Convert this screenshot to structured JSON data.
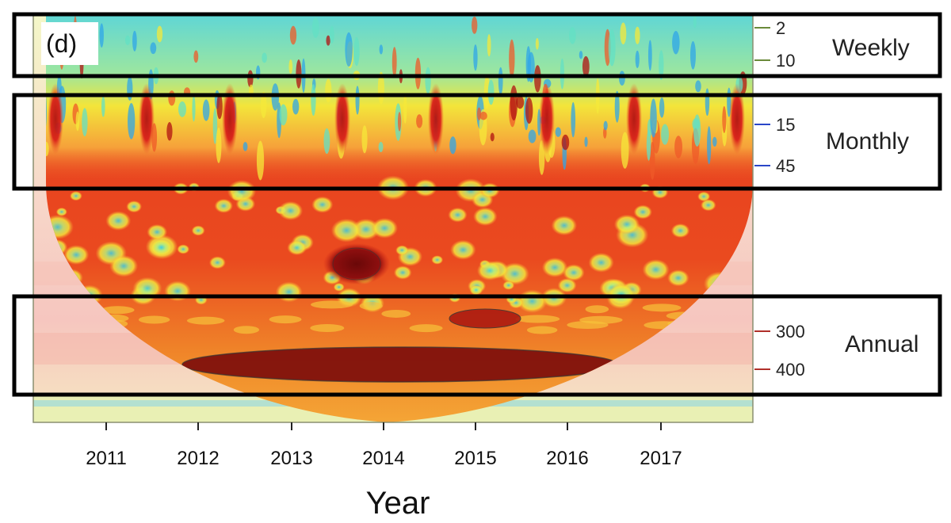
{
  "chart_data": {
    "type": "heatmap",
    "panel_label": "(d)",
    "xlabel": "Year",
    "x_ticks": [
      "2011",
      "2012",
      "2013",
      "2014",
      "2015",
      "2016",
      "2017"
    ],
    "period_ticks": [
      {
        "label": "2",
        "color": "#6a8a3a"
      },
      {
        "label": "10",
        "color": "#6a8a3a"
      },
      {
        "label": "15",
        "color": "#2a46c8"
      },
      {
        "label": "45",
        "color": "#2a46c8"
      },
      {
        "label": "300",
        "color": "#b0302a"
      },
      {
        "label": "400",
        "color": "#b0302a"
      }
    ],
    "bands": [
      {
        "label": "Weekly"
      },
      {
        "label": "Monthly"
      },
      {
        "label": "Annual"
      }
    ],
    "colormap": [
      "#1f4fd1",
      "#2fa6e8",
      "#63e0c4",
      "#c8f07a",
      "#f6e83a",
      "#f6a53a",
      "#ef5a28",
      "#d91f1a",
      "#8a0c0c"
    ]
  }
}
